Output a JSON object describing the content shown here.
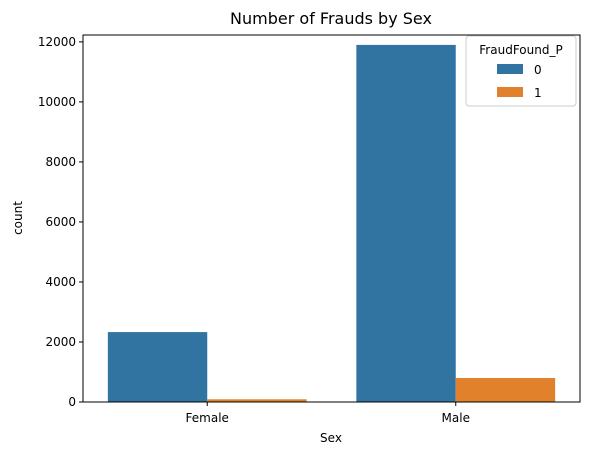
{
  "chart_data": {
    "type": "bar",
    "title": "Number of Frauds by Sex",
    "xlabel": "Sex",
    "ylabel": "count",
    "categories": [
      "Female",
      "Male"
    ],
    "series": [
      {
        "name": "0",
        "values": [
          2330,
          11900
        ],
        "color": "#3274a1"
      },
      {
        "name": "1",
        "values": [
          90,
          800
        ],
        "color": "#e1812c"
      }
    ],
    "ylim": [
      0,
      12230
    ],
    "yticks": [
      0,
      2000,
      4000,
      6000,
      8000,
      10000,
      12000
    ],
    "legend": {
      "title": "FraudFound_P",
      "placement": "top-right"
    },
    "grid": false
  }
}
